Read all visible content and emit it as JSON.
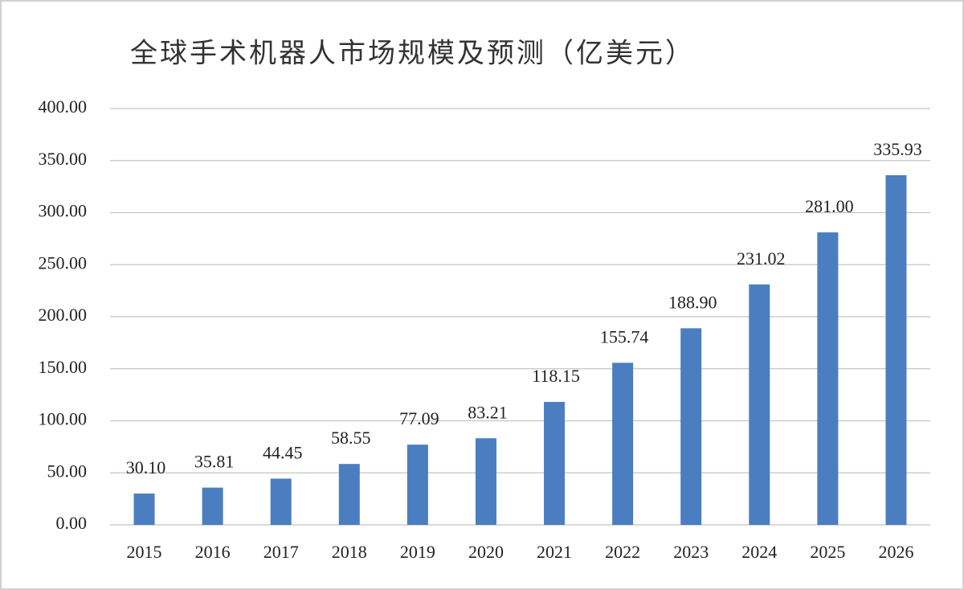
{
  "chart_data": {
    "type": "bar",
    "title": "全球手术机器人市场规模及预测（亿美元）",
    "categories": [
      "2015",
      "2016",
      "2017",
      "2018",
      "2019",
      "2020",
      "2021",
      "2022",
      "2023",
      "2024",
      "2025",
      "2026"
    ],
    "values": [
      30.1,
      35.81,
      44.45,
      58.55,
      77.09,
      83.21,
      118.15,
      155.74,
      188.9,
      231.02,
      281.0,
      335.93
    ],
    "value_labels": [
      "30.10",
      "35.81",
      "44.45",
      "58.55",
      "77.09",
      "83.21",
      "118.15",
      "155.74",
      "188.90",
      "231.02",
      "281.00",
      "335.93"
    ],
    "color": "#4a7ec0",
    "ylim": [
      0,
      400
    ],
    "yticks": [
      {
        "value": 0,
        "label": "0.00"
      },
      {
        "value": 50,
        "label": "50.00"
      },
      {
        "value": 100,
        "label": "100.00"
      },
      {
        "value": 150,
        "label": "150.00"
      },
      {
        "value": 200,
        "label": "200.00"
      },
      {
        "value": 250,
        "label": "250.00"
      },
      {
        "value": 300,
        "label": "300.00"
      },
      {
        "value": 350,
        "label": "350.00"
      },
      {
        "value": 400,
        "label": "400.00"
      }
    ],
    "grid": true
  }
}
